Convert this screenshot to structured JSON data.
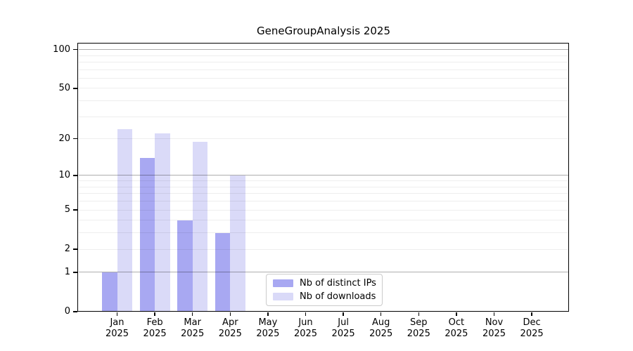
{
  "chart_data": {
    "type": "bar",
    "title": "GeneGroupAnalysis 2025",
    "y_scale": "log10(1+x)",
    "ylim": [
      0,
      100
    ],
    "y_ticks": [
      100,
      50,
      20,
      10,
      5,
      2,
      1,
      0
    ],
    "y_major_gridlines": [
      1,
      10,
      100
    ],
    "y_minor_gridlines": [
      2,
      3,
      4,
      5,
      6,
      7,
      8,
      9,
      20,
      30,
      40,
      50,
      60,
      70,
      80,
      90
    ],
    "grid": "on",
    "legend_position": "bottom-center",
    "categories": [
      {
        "month": "Jan",
        "year": "2025"
      },
      {
        "month": "Feb",
        "year": "2025"
      },
      {
        "month": "Mar",
        "year": "2025"
      },
      {
        "month": "Apr",
        "year": "2025"
      },
      {
        "month": "May",
        "year": "2025"
      },
      {
        "month": "Jun",
        "year": "2025"
      },
      {
        "month": "Jul",
        "year": "2025"
      },
      {
        "month": "Aug",
        "year": "2025"
      },
      {
        "month": "Sep",
        "year": "2025"
      },
      {
        "month": "Oct",
        "year": "2025"
      },
      {
        "month": "Nov",
        "year": "2025"
      },
      {
        "month": "Dec",
        "year": "2025"
      }
    ],
    "series": [
      {
        "name": "Nb of distinct IPs",
        "color": "#a8a8f2",
        "values": [
          1,
          14,
          4,
          3,
          0,
          0,
          0,
          0,
          0,
          0,
          0,
          0
        ]
      },
      {
        "name": "Nb of downloads",
        "color": "#dadaf8",
        "values": [
          24,
          22,
          19,
          10,
          0,
          0,
          0,
          0,
          0,
          0,
          0,
          0
        ]
      }
    ]
  }
}
